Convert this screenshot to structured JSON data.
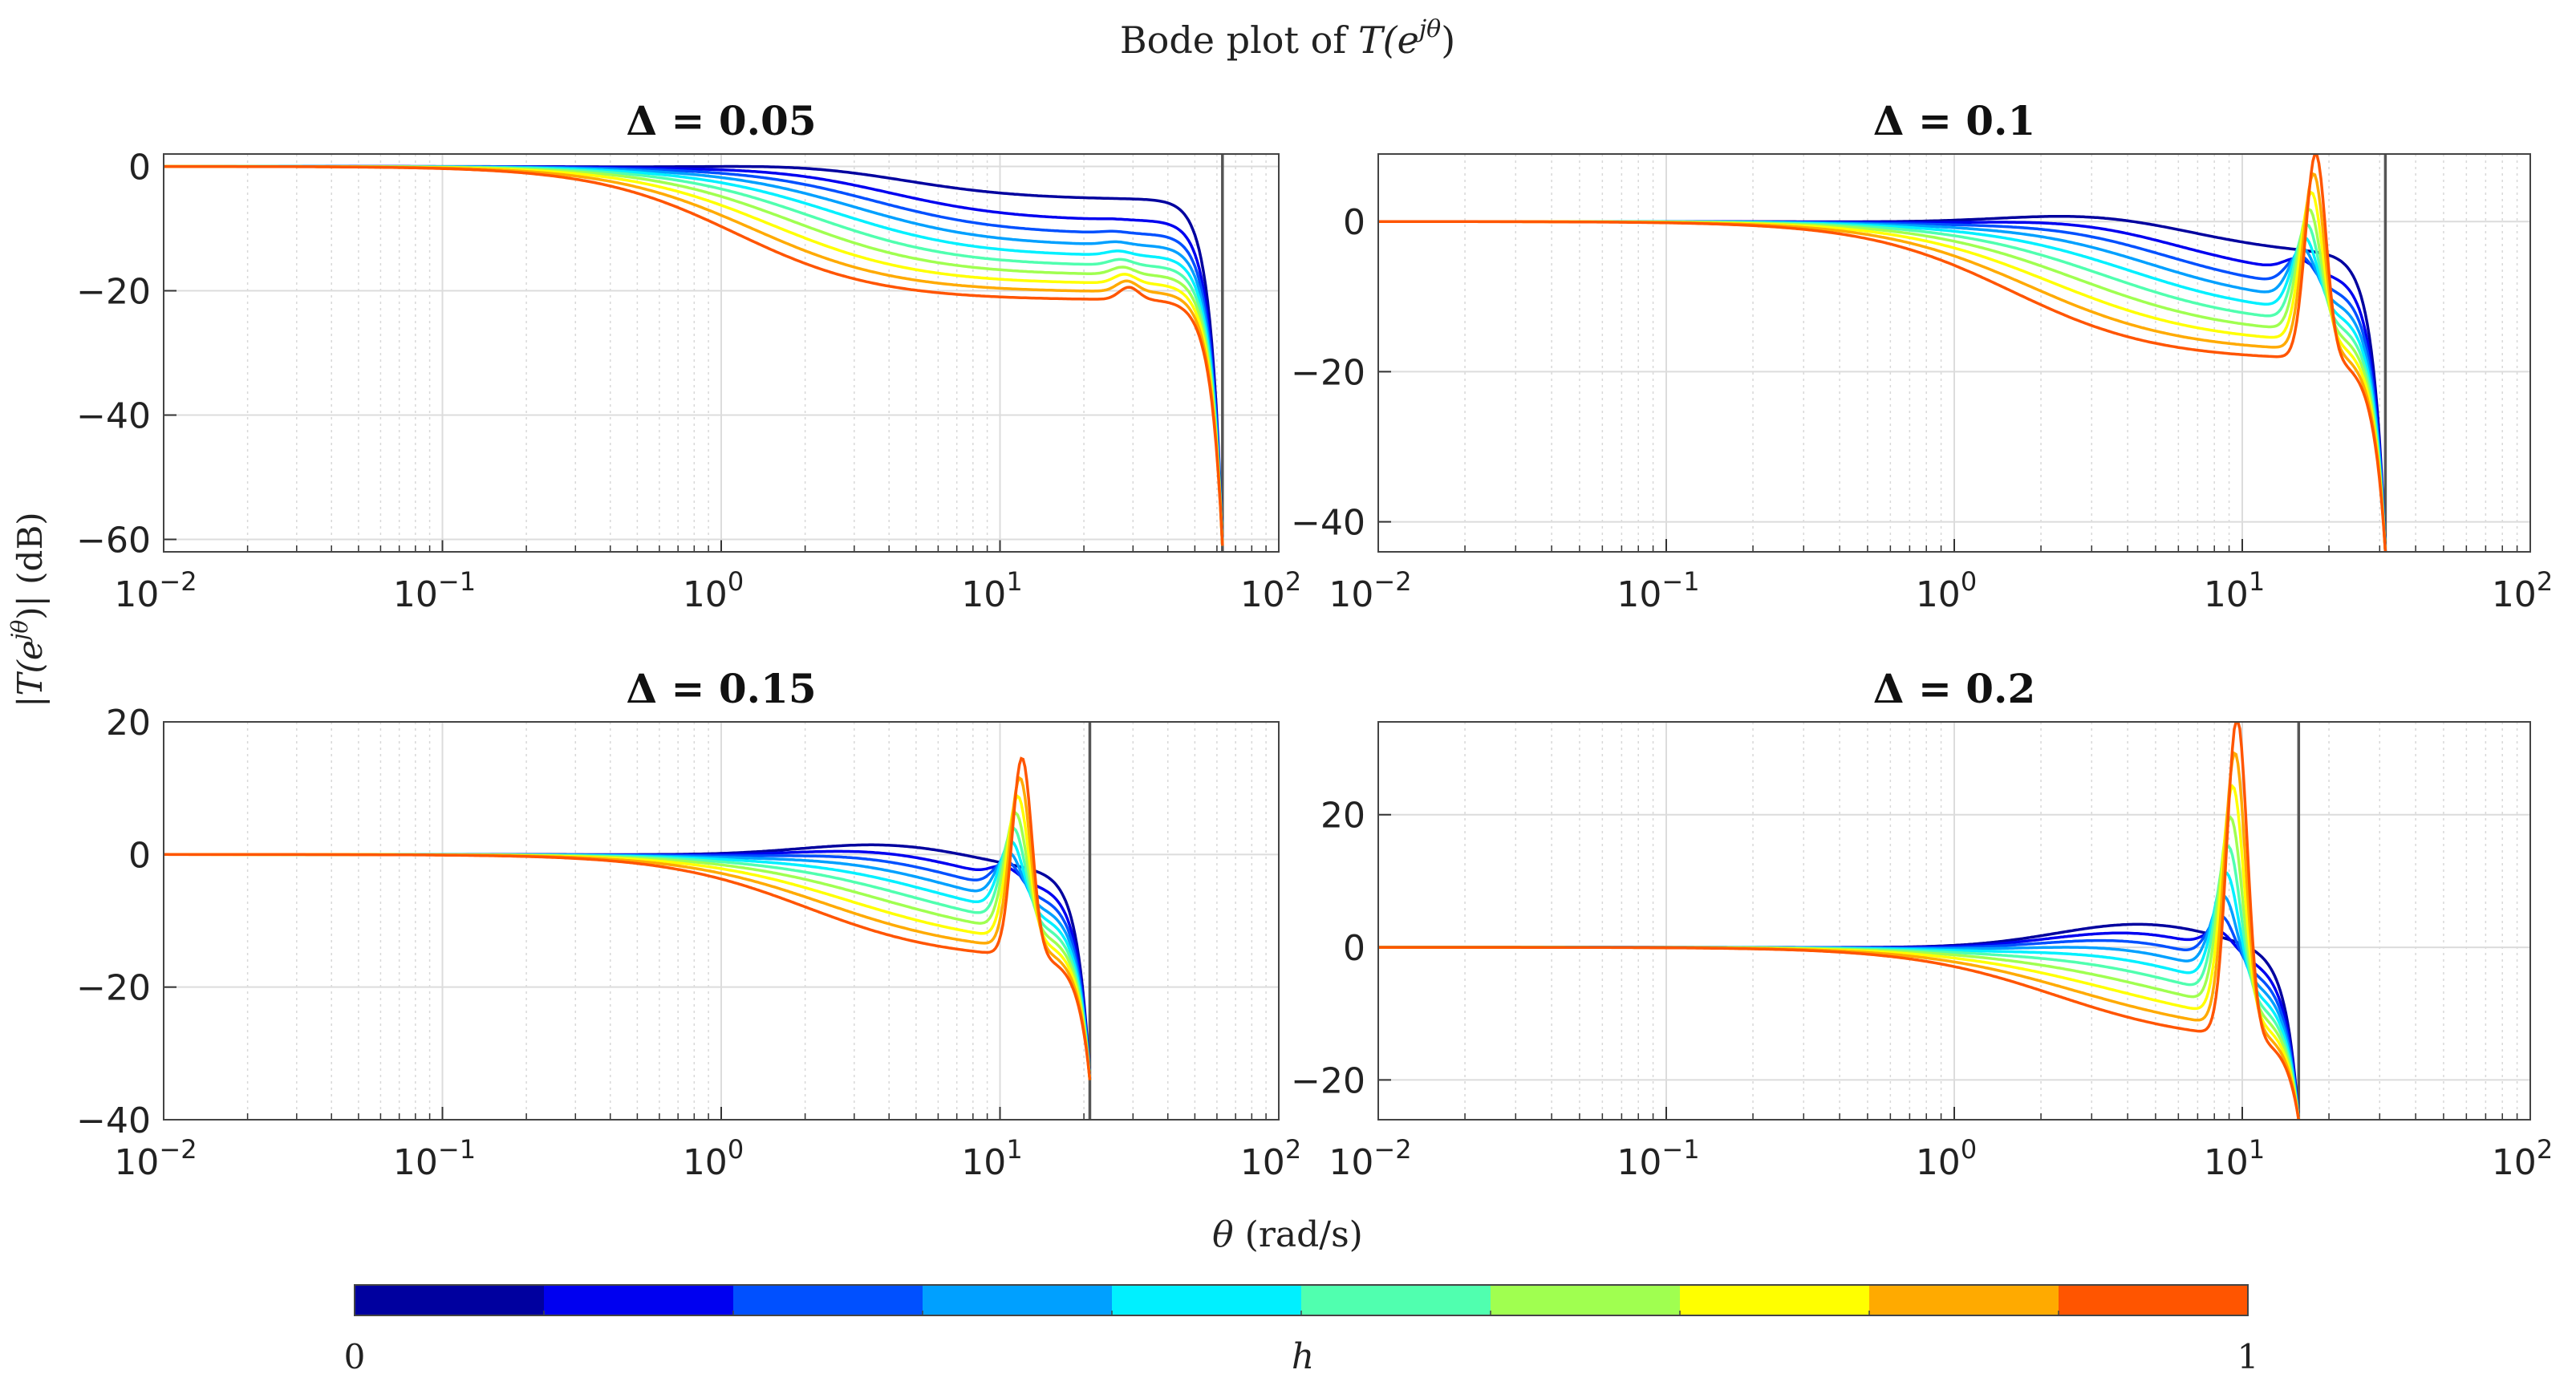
{
  "figure": {
    "title": "Bode plot of T(e^{jθ})",
    "title_main": "Bode plot of ",
    "title_T": "T",
    "title_paren_open": "(e",
    "title_sup": "jθ",
    "title_paren_close": ")",
    "ylabel_bar_left": "|",
    "ylabel_T": "T",
    "ylabel_paren_open": "(e",
    "ylabel_sup": "jθ",
    "ylabel_tail": ")| (dB)",
    "xlabel_theta": "θ",
    "xlabel_units": " (rad/s)"
  },
  "colorbar": {
    "label": "h",
    "min_label": "0",
    "max_label": "1",
    "colors": [
      "#00009f",
      "#0000f0",
      "#0050ff",
      "#00a0ff",
      "#00f0ff",
      "#50ffaf",
      "#a0ff50",
      "#ffff00",
      "#ffaa00",
      "#ff5500"
    ]
  },
  "chart_data": [
    {
      "type": "line",
      "title": "Δ = 0.05",
      "delta_label": "Δ",
      "delta_value": " = 0.05",
      "xscale": "log",
      "xlim": [
        0.01,
        100
      ],
      "ylim": [
        -62,
        2
      ],
      "yticks": [
        0,
        -20,
        -40,
        -60
      ],
      "ytick_labels": [
        "0",
        "−20",
        "−40",
        "−60"
      ],
      "xticks": [
        0.01,
        0.1,
        1,
        10,
        100
      ],
      "xtick_labels": [
        [
          "10",
          "−2"
        ],
        [
          "10",
          "−1"
        ],
        [
          "10",
          "0"
        ],
        [
          "10",
          "1"
        ],
        [
          "10",
          "2"
        ]
      ],
      "xlabel": "",
      "ylabel": "|T(e^{jθ})| (dB)",
      "nyquist": 62.8,
      "peak_x": 2.5,
      "peak_db": 1.0,
      "notch_x": 20,
      "notch_db": -21.5,
      "resonance_x": 29,
      "resonance_db": -19.5,
      "end_db": -61,
      "series": [
        {
          "name": "h = 0.05",
          "color": "#00009f"
        },
        {
          "name": "h = 0.15",
          "color": "#0000f0"
        },
        {
          "name": "h = 0.25",
          "color": "#0050ff"
        },
        {
          "name": "h = 0.35",
          "color": "#00a0ff"
        },
        {
          "name": "h = 0.45",
          "color": "#00f0ff"
        },
        {
          "name": "h = 0.55",
          "color": "#50ffaf"
        },
        {
          "name": "h = 0.65",
          "color": "#a0ff50"
        },
        {
          "name": "h = 0.75",
          "color": "#ffff00"
        },
        {
          "name": "h = 0.85",
          "color": "#ffaa00"
        },
        {
          "name": "h = 0.95",
          "color": "#ff5500"
        }
      ]
    },
    {
      "type": "line",
      "title": "Δ = 0.1",
      "delta_label": "Δ",
      "delta_value": " = 0.1",
      "xscale": "log",
      "xlim": [
        0.01,
        100
      ],
      "ylim": [
        -44,
        9
      ],
      "yticks": [
        0,
        -20,
        -40
      ],
      "ytick_labels": [
        "0",
        "−20",
        "−40"
      ],
      "xticks": [
        0.01,
        0.1,
        1,
        10,
        100
      ],
      "xtick_labels": [
        [
          "10",
          "−2"
        ],
        [
          "10",
          "−1"
        ],
        [
          "10",
          "0"
        ],
        [
          "10",
          "1"
        ],
        [
          "10",
          "2"
        ]
      ],
      "xlabel": "",
      "ylabel": "",
      "nyquist": 31.4,
      "peak_x": 3.5,
      "peak_db": 1.8,
      "notch_x": 11,
      "notch_db": -18.5,
      "resonance_x": 18,
      "resonance_db": 9,
      "end_db": -44,
      "series": [
        {
          "name": "h = 0.05",
          "color": "#00009f"
        },
        {
          "name": "h = 0.15",
          "color": "#0000f0"
        },
        {
          "name": "h = 0.25",
          "color": "#0050ff"
        },
        {
          "name": "h = 0.35",
          "color": "#00a0ff"
        },
        {
          "name": "h = 0.45",
          "color": "#00f0ff"
        },
        {
          "name": "h = 0.55",
          "color": "#50ffaf"
        },
        {
          "name": "h = 0.65",
          "color": "#a0ff50"
        },
        {
          "name": "h = 0.75",
          "color": "#ffff00"
        },
        {
          "name": "h = 0.85",
          "color": "#ffaa00"
        },
        {
          "name": "h = 0.95",
          "color": "#ff5500"
        }
      ]
    },
    {
      "type": "line",
      "title": "Δ = 0.15",
      "delta_label": "Δ",
      "delta_value": " = 0.15",
      "xscale": "log",
      "xlim": [
        0.01,
        100
      ],
      "ylim": [
        -40,
        20
      ],
      "yticks": [
        20,
        0,
        -20,
        -40
      ],
      "ytick_labels": [
        "20",
        "0",
        "−20",
        "−40"
      ],
      "xticks": [
        0.01,
        0.1,
        1,
        10,
        100
      ],
      "xtick_labels": [
        [
          "10",
          "−2"
        ],
        [
          "10",
          "−1"
        ],
        [
          "10",
          "0"
        ],
        [
          "10",
          "1"
        ],
        [
          "10",
          "2"
        ]
      ],
      "xlabel": "",
      "ylabel": "",
      "nyquist": 21,
      "peak_x": 4.5,
      "peak_db": 2.5,
      "notch_x": 8,
      "notch_db": -16,
      "resonance_x": 12,
      "resonance_db": 14,
      "end_db": -34,
      "series": [
        {
          "name": "h = 0.05",
          "color": "#00009f"
        },
        {
          "name": "h = 0.15",
          "color": "#0000f0"
        },
        {
          "name": "h = 0.25",
          "color": "#0050ff"
        },
        {
          "name": "h = 0.35",
          "color": "#00a0ff"
        },
        {
          "name": "h = 0.45",
          "color": "#00f0ff"
        },
        {
          "name": "h = 0.55",
          "color": "#50ffaf"
        },
        {
          "name": "h = 0.65",
          "color": "#a0ff50"
        },
        {
          "name": "h = 0.75",
          "color": "#ffff00"
        },
        {
          "name": "h = 0.85",
          "color": "#ffaa00"
        },
        {
          "name": "h = 0.95",
          "color": "#ff5500"
        }
      ]
    },
    {
      "type": "line",
      "title": "Δ = 0.2",
      "delta_label": "Δ",
      "delta_value": " = 0.2",
      "xscale": "log",
      "xlim": [
        0.01,
        100
      ],
      "ylim": [
        -26,
        34
      ],
      "yticks": [
        20,
        0,
        -20
      ],
      "ytick_labels": [
        "20",
        "0",
        "−20"
      ],
      "xticks": [
        0.01,
        0.1,
        1,
        10,
        100
      ],
      "xtick_labels": [
        [
          "10",
          "−2"
        ],
        [
          "10",
          "−1"
        ],
        [
          "10",
          "0"
        ],
        [
          "10",
          "1"
        ],
        [
          "10",
          "2"
        ]
      ],
      "xlabel": "",
      "ylabel": "",
      "nyquist": 15.7,
      "peak_x": 5,
      "peak_db": 4.5,
      "notch_x": 6.5,
      "notch_db": -14.5,
      "resonance_x": 9.6,
      "resonance_db": 34,
      "end_db": -26,
      "series": [
        {
          "name": "h = 0.05",
          "color": "#00009f"
        },
        {
          "name": "h = 0.15",
          "color": "#0000f0"
        },
        {
          "name": "h = 0.25",
          "color": "#0050ff"
        },
        {
          "name": "h = 0.35",
          "color": "#00a0ff"
        },
        {
          "name": "h = 0.45",
          "color": "#00f0ff"
        },
        {
          "name": "h = 0.55",
          "color": "#50ffaf"
        },
        {
          "name": "h = 0.65",
          "color": "#a0ff50"
        },
        {
          "name": "h = 0.75",
          "color": "#ffff00"
        },
        {
          "name": "h = 0.85",
          "color": "#ffaa00"
        },
        {
          "name": "h = 0.95",
          "color": "#ff5500"
        }
      ]
    }
  ]
}
